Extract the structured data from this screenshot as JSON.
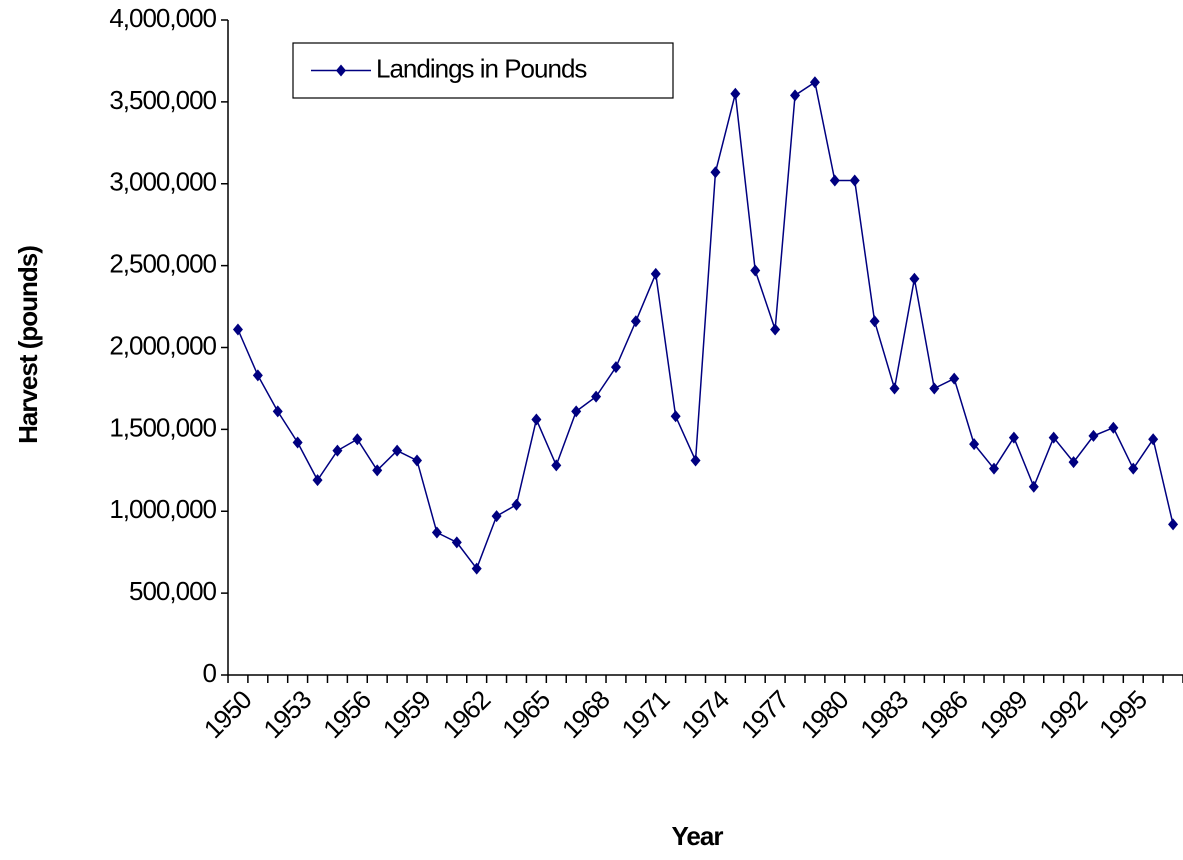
{
  "chart_data": {
    "type": "line",
    "x_label": "Year",
    "y_label": "Harvest (pounds)",
    "categories": [
      "1950",
      null,
      null,
      "1953",
      null,
      null,
      "1956",
      null,
      null,
      "1959",
      null,
      null,
      "1962",
      null,
      null,
      "1965",
      null,
      null,
      "1968",
      null,
      null,
      "1971",
      null,
      null,
      "1974",
      null,
      null,
      "1977",
      null,
      null,
      "1980",
      null,
      null,
      "1983",
      null,
      null,
      "1986",
      null,
      null,
      "1989",
      null,
      null,
      "1992",
      null,
      null,
      "1995",
      null,
      null
    ],
    "series": [
      {
        "name": "Landings in Pounds",
        "color": "#000080",
        "values": [
          2110000,
          1830000,
          1610000,
          1420000,
          1190000,
          1370000,
          1440000,
          1250000,
          1370000,
          1310000,
          870000,
          810000,
          650000,
          970000,
          1040000,
          1560000,
          1280000,
          1610000,
          1700000,
          1880000,
          2160000,
          2450000,
          1580000,
          1310000,
          3070000,
          3550000,
          2470000,
          2110000,
          3540000,
          3620000,
          3020000,
          3020000,
          2160000,
          1750000,
          2420000,
          1750000,
          1810000,
          1410000,
          1260000,
          1450000,
          1150000,
          1450000,
          1300000,
          1460000,
          1510000,
          1260000,
          1440000,
          920000
        ]
      }
    ],
    "ylim": [
      0,
      4000000
    ],
    "yticks": [
      0,
      {
        "value": 500000,
        "label": "500,000"
      },
      {
        "value": 1000000,
        "label": "1,000,000"
      },
      {
        "value": 1500000,
        "label": "1,500,000"
      },
      {
        "value": 2000000,
        "label": "2,000,000"
      },
      {
        "value": 2500000,
        "label": "2,500,000"
      },
      {
        "value": 3000000,
        "label": "3,000,000"
      },
      {
        "value": 3500000,
        "label": "3,500,000"
      },
      {
        "value": 4000000,
        "label": "4,000,000"
      }
    ],
    "grid": false,
    "legend": "top-left"
  }
}
